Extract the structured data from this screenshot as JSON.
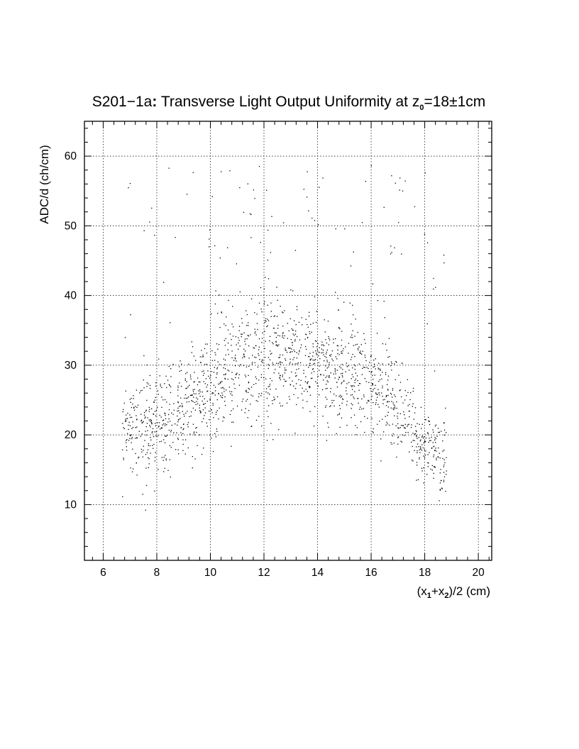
{
  "chart_data": {
    "type": "scatter",
    "title": {
      "pre": "S201−1a",
      "colon": ":",
      "mid": " Transverse Light Output Uniformity at z",
      "sub": "0",
      "post": "=18±1cm"
    },
    "ylabel": "ADC/d (ch/cm)",
    "xlabel": {
      "p1": "(x",
      "s1": "1",
      "p2": "+x",
      "s2": "2",
      "p3": ")/2 (cm)"
    },
    "xlim": [
      5.3,
      20.5
    ],
    "ylim": [
      2,
      65
    ],
    "x_ticks": [
      6,
      8,
      10,
      12,
      14,
      16,
      18,
      20
    ],
    "y_ticks": [
      10,
      20,
      30,
      40,
      50,
      60
    ],
    "grid": true,
    "legend": "none",
    "marker_color": "#000000",
    "point_count": 1700,
    "x_range_of_points": [
      6.7,
      18.8
    ],
    "trend": [
      {
        "x": 7.0,
        "y": 21
      },
      {
        "x": 8.0,
        "y": 21
      },
      {
        "x": 9.0,
        "y": 24
      },
      {
        "x": 10.0,
        "y": 27
      },
      {
        "x": 11.0,
        "y": 30
      },
      {
        "x": 12.0,
        "y": 31
      },
      {
        "x": 13.0,
        "y": 31
      },
      {
        "x": 14.0,
        "y": 30
      },
      {
        "x": 15.0,
        "y": 28.5
      },
      {
        "x": 16.0,
        "y": 27.5
      },
      {
        "x": 17.0,
        "y": 24
      },
      {
        "x": 18.0,
        "y": 19
      },
      {
        "x": 18.8,
        "y": 16.5
      }
    ],
    "spread": [
      {
        "x": 7.0,
        "sd": 3.5
      },
      {
        "x": 9.0,
        "sd": 3.8
      },
      {
        "x": 12.0,
        "sd": 4.5
      },
      {
        "x": 14.0,
        "sd": 4.0
      },
      {
        "x": 16.0,
        "sd": 3.8
      },
      {
        "x": 18.0,
        "sd": 3.0
      },
      {
        "x": 18.8,
        "sd": 2.8
      }
    ],
    "outlier_fraction": 0.06,
    "outlier_y_range": [
      36,
      59
    ]
  }
}
